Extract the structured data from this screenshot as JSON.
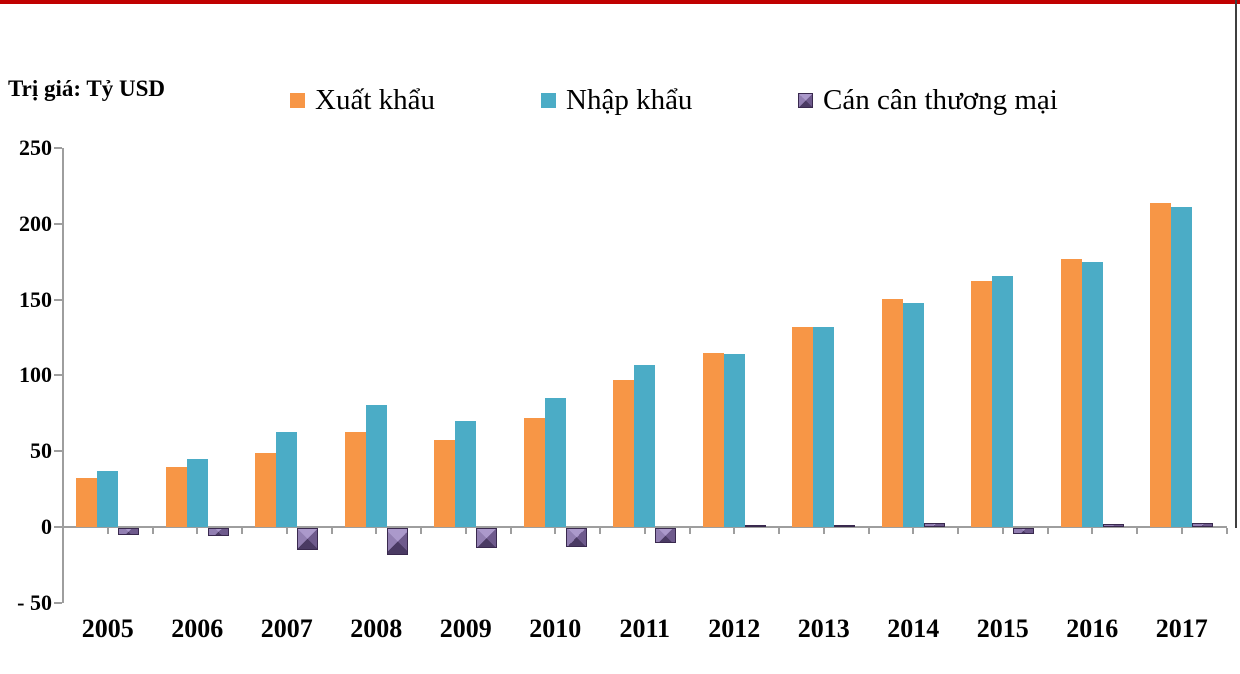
{
  "frame": {
    "top_line_color": "#C00000",
    "right_line_color": "#3f3f3f",
    "axis_color": "#9e9e9e",
    "background": "#ffffff"
  },
  "chart_data": {
    "type": "bar",
    "title": "",
    "unit_label": "Trị giá: Tỷ USD",
    "categories": [
      "2005",
      "2006",
      "2007",
      "2008",
      "2009",
      "2010",
      "2011",
      "2012",
      "2013",
      "2014",
      "2015",
      "2016",
      "2017"
    ],
    "series": [
      {
        "key": "export",
        "name": "Xuất khẩu",
        "color": "#F79646",
        "style": "flat",
        "values": [
          32.4,
          39.8,
          48.6,
          62.7,
          57.1,
          72.2,
          96.9,
          114.5,
          132.0,
          150.2,
          162.0,
          176.6,
          214.0
        ]
      },
      {
        "key": "import",
        "name": "Nhập khẩu",
        "color": "#4BACC6",
        "style": "flat",
        "values": [
          36.8,
          44.9,
          62.8,
          80.7,
          69.9,
          84.8,
          106.7,
          113.8,
          132.0,
          147.8,
          165.8,
          174.8,
          211.1
        ]
      },
      {
        "key": "balance",
        "name": "Cán cân thương mại",
        "color": "#8064A2",
        "style": "bevel",
        "values": [
          -4.3,
          -5.1,
          -14.2,
          -18.0,
          -12.9,
          -12.6,
          -9.8,
          0.7,
          0.0,
          2.4,
          -3.8,
          1.8,
          2.9
        ]
      }
    ],
    "ylim": [
      -50,
      250
    ],
    "ytick_interval": 50,
    "ytick_values": [
      250,
      200,
      150,
      100,
      50,
      0,
      -50
    ],
    "ytick_labels": [
      "250",
      "200",
      "150",
      "100",
      "50",
      "0",
      "- 50"
    ],
    "xlabel": "",
    "ylabel": "",
    "grid": false,
    "legend_position": "top"
  }
}
